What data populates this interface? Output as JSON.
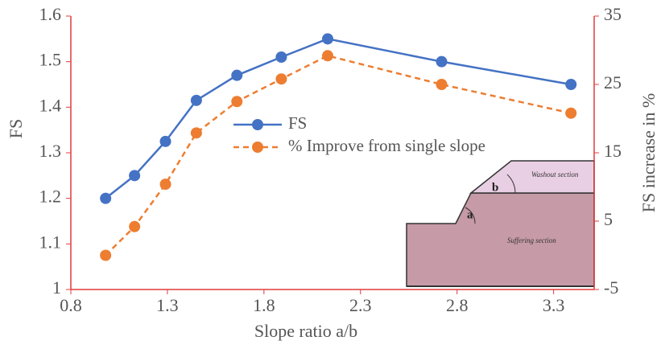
{
  "chart_data": {
    "type": "line",
    "xlabel": "Slope ratio a/b",
    "ylabel": "FS",
    "y2label": "FS increase in %",
    "x": [
      0.98,
      1.13,
      1.29,
      1.45,
      1.66,
      1.89,
      2.13,
      2.72,
      3.39
    ],
    "series": [
      {
        "name": "FS",
        "color": "#4472c4",
        "dash": false,
        "values": [
          1.2,
          1.25,
          1.325,
          1.415,
          1.47,
          1.51,
          1.55,
          1.5,
          1.45
        ]
      },
      {
        "name": "% Improve from single slope",
        "color": "#ed7d31",
        "dash": true,
        "axis": "y2",
        "values": [
          0,
          4.2,
          10.4,
          17.9,
          22.5,
          25.8,
          29.2,
          25,
          20.8
        ]
      }
    ],
    "xlim": [
      0.8,
      3.51
    ],
    "xticks": [
      0.8,
      1.3,
      1.8,
      2.3,
      2.8,
      3.3
    ],
    "ylim": [
      1,
      1.6
    ],
    "yticks": [
      1,
      1.1,
      1.2,
      1.3,
      1.4,
      1.5,
      1.6
    ],
    "y2lim": [
      -5,
      35
    ],
    "y2ticks": [
      -5,
      5,
      15,
      25,
      35
    ],
    "axis_color": "#e03c3c",
    "grid": false,
    "legend": "center",
    "annotations": [
      "a",
      "b",
      "Washout section",
      "Suffering section"
    ]
  }
}
